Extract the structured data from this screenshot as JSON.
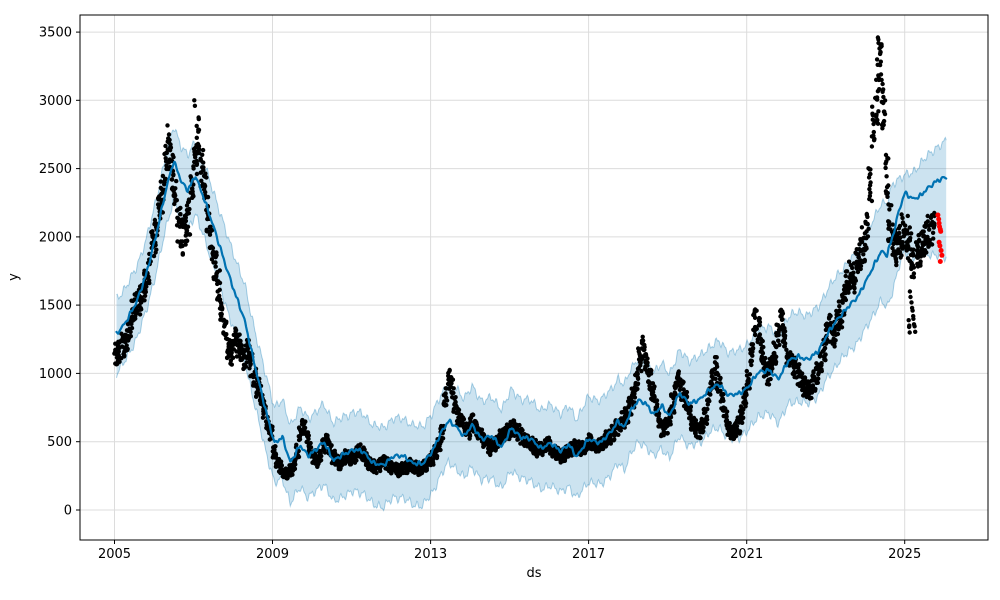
{
  "chart_data": {
    "type": "scatter",
    "title": "",
    "xlabel": "ds",
    "ylabel": "y",
    "grid": true,
    "legend": "none",
    "xlim": [
      2004.127,
      2027.107
    ],
    "ylim": [
      -220,
      3625
    ],
    "x_ticks": [
      2005,
      2009,
      2013,
      2017,
      2021,
      2025
    ],
    "y_ticks": [
      0,
      500,
      1000,
      1500,
      2000,
      2500,
      3000,
      3500
    ],
    "colors": {
      "observed": "#000000",
      "anomaly": "#ff0000",
      "forecast_line": "#0072b2",
      "band_fill": "#0072b2",
      "band_fill_opacity": 0.2,
      "grid": "#dcdcdc",
      "spine": "#000000",
      "tick_text": "#000000"
    },
    "series_names": {
      "observed": "observed (black dots)",
      "forecast": "yhat forecast line",
      "band": "uncertainty interval",
      "anomaly": "recent points flagged red"
    },
    "observed_monthly": {
      "2005": [
        1150,
        1170,
        1200,
        1240,
        1330,
        1430,
        1500,
        1530,
        1570,
        1650,
        1760,
        1920
      ],
      "2006": [
        2000,
        2180,
        2320,
        2520,
        2650,
        2500,
        2280,
        2080,
        2000,
        2060,
        2160,
        2380
      ],
      "2007": [
        2620,
        2740,
        2520,
        2320,
        2150,
        1950,
        1780,
        1650,
        1450,
        1300,
        1200,
        1150
      ],
      "2008": [
        1260,
        1200,
        1150,
        1120,
        1160,
        1060,
        960,
        900,
        840,
        740,
        640,
        560
      ],
      "2009": [
        430,
        360,
        310,
        280,
        260,
        290,
        330,
        430,
        560,
        600,
        520,
        440
      ],
      "2010": [
        390,
        360,
        400,
        470,
        510,
        450,
        390,
        360,
        340,
        370,
        390,
        380
      ],
      "2011": [
        390,
        410,
        430,
        410,
        370,
        340,
        320,
        310,
        330,
        350,
        340,
        320
      ],
      "2012": [
        310,
        300,
        290,
        300,
        310,
        330,
        320,
        310,
        300,
        310,
        330,
        370
      ],
      "2013": [
        380,
        420,
        480,
        560,
        820,
        950,
        900,
        780,
        680,
        640,
        610,
        580
      ],
      "2014": [
        640,
        600,
        570,
        540,
        500,
        470,
        450,
        480,
        510,
        530,
        550,
        570
      ],
      "2015": [
        590,
        600,
        570,
        540,
        520,
        500,
        480,
        460,
        440,
        450,
        470,
        480
      ],
      "2016": [
        460,
        430,
        410,
        390,
        400,
        420,
        440,
        460,
        450,
        430,
        450,
        470
      ],
      "2017": [
        500,
        490,
        470,
        480,
        500,
        520,
        540,
        560,
        600,
        630,
        660,
        700
      ],
      "2018": [
        760,
        820,
        950,
        1100,
        1180,
        1080,
        950,
        860,
        750,
        660,
        600,
        620
      ],
      "2019": [
        680,
        780,
        900,
        950,
        880,
        800,
        720,
        650,
        600,
        580,
        620,
        680
      ],
      "2020": [
        820,
        950,
        1040,
        920,
        780,
        680,
        600,
        570,
        580,
        620,
        700,
        820
      ],
      "2021": [
        950,
        1150,
        1380,
        1320,
        1180,
        1060,
        1000,
        1040,
        1140,
        1290,
        1370,
        1270
      ],
      "2022": [
        1150,
        1090,
        1040,
        990,
        950,
        900,
        870,
        890,
        940,
        1000,
        1090,
        1180
      ],
      "2023": [
        1270,
        1330,
        1290,
        1360,
        1440,
        1540,
        1640,
        1740,
        1700,
        1790,
        1880,
        1940
      ],
      "2024": [
        2050,
        2400,
        2800,
        3000,
        3250,
        2900,
        2450,
        2100,
        1980,
        1920,
        1970,
        2030
      ],
      "2025": [
        2020,
        1950,
        1800,
        1850,
        1900,
        1950,
        1980,
        2020,
        2040
      ]
    },
    "observed_outliers": [
      [
        2007.02,
        3000
      ],
      [
        2006.38,
        2750
      ],
      [
        2024.32,
        3460
      ],
      [
        2024.36,
        3380
      ],
      [
        2024.3,
        3300
      ],
      [
        2024.4,
        3190
      ],
      [
        2024.44,
        3120
      ],
      [
        2025.1,
        1390
      ],
      [
        2025.11,
        1340
      ],
      [
        2025.13,
        1600
      ],
      [
        2025.17,
        1520
      ],
      [
        2025.2,
        1460
      ],
      [
        2025.22,
        1400
      ],
      [
        2025.25,
        1345
      ]
    ],
    "anomalies_red": [
      [
        2025.84,
        2160
      ],
      [
        2025.86,
        2130
      ],
      [
        2025.87,
        2100
      ],
      [
        2025.88,
        2075
      ],
      [
        2025.9,
        2055
      ],
      [
        2025.91,
        2040
      ],
      [
        2025.87,
        1960
      ],
      [
        2025.89,
        1935
      ],
      [
        2025.92,
        1900
      ],
      [
        2025.94,
        1865
      ],
      [
        2025.9,
        1820
      ]
    ],
    "forecast": [
      [
        2005.05,
        1290,
        1000,
        1545
      ],
      [
        2005.3,
        1380,
        1105,
        1635
      ],
      [
        2005.55,
        1520,
        1250,
        1775
      ],
      [
        2005.8,
        1720,
        1450,
        1975
      ],
      [
        2006.05,
        2010,
        1735,
        2265
      ],
      [
        2006.3,
        2340,
        2060,
        2595
      ],
      [
        2006.5,
        2560,
        2280,
        2815
      ],
      [
        2006.7,
        2400,
        2120,
        2655
      ],
      [
        2006.85,
        2340,
        2060,
        2595
      ],
      [
        2007.05,
        2450,
        2165,
        2705
      ],
      [
        2007.3,
        2250,
        1965,
        2505
      ],
      [
        2007.55,
        2040,
        1755,
        2295
      ],
      [
        2007.8,
        1800,
        1510,
        2055
      ],
      [
        2008.05,
        1590,
        1300,
        1850
      ],
      [
        2008.3,
        1380,
        1085,
        1640
      ],
      [
        2008.55,
        1060,
        765,
        1320
      ],
      [
        2008.8,
        760,
        465,
        1020
      ],
      [
        2009.05,
        490,
        195,
        755
      ],
      [
        2009.25,
        530,
        230,
        800
      ],
      [
        2009.45,
        350,
        50,
        625
      ],
      [
        2009.7,
        470,
        165,
        745
      ],
      [
        2009.9,
        400,
        95,
        675
      ],
      [
        2010.1,
        440,
        135,
        715
      ],
      [
        2010.3,
        500,
        195,
        775
      ],
      [
        2010.55,
        360,
        55,
        635
      ],
      [
        2010.8,
        410,
        105,
        685
      ],
      [
        2011.05,
        440,
        135,
        715
      ],
      [
        2011.3,
        430,
        125,
        705
      ],
      [
        2011.55,
        340,
        35,
        615
      ],
      [
        2011.8,
        330,
        25,
        605
      ],
      [
        2012.05,
        390,
        85,
        665
      ],
      [
        2012.3,
        400,
        95,
        675
      ],
      [
        2012.55,
        340,
        35,
        615
      ],
      [
        2012.8,
        340,
        35,
        615
      ],
      [
        2013.05,
        430,
        125,
        705
      ],
      [
        2013.25,
        560,
        255,
        840
      ],
      [
        2013.45,
        650,
        345,
        930
      ],
      [
        2013.65,
        610,
        305,
        890
      ],
      [
        2013.85,
        540,
        235,
        820
      ],
      [
        2014.05,
        620,
        315,
        900
      ],
      [
        2014.3,
        520,
        215,
        800
      ],
      [
        2014.55,
        540,
        235,
        820
      ],
      [
        2014.8,
        460,
        155,
        740
      ],
      [
        2015.05,
        600,
        295,
        880
      ],
      [
        2015.3,
        530,
        225,
        810
      ],
      [
        2015.55,
        520,
        215,
        800
      ],
      [
        2015.8,
        450,
        145,
        730
      ],
      [
        2016.05,
        490,
        185,
        770
      ],
      [
        2016.3,
        430,
        125,
        705
      ],
      [
        2016.5,
        480,
        175,
        760
      ],
      [
        2016.7,
        390,
        85,
        665
      ],
      [
        2017.0,
        520,
        210,
        830
      ],
      [
        2017.3,
        490,
        180,
        800
      ],
      [
        2017.55,
        570,
        260,
        880
      ],
      [
        2017.75,
        650,
        340,
        960
      ],
      [
        2017.9,
        600,
        290,
        910
      ],
      [
        2018.05,
        720,
        410,
        1030
      ],
      [
        2018.25,
        800,
        490,
        1110
      ],
      [
        2018.45,
        780,
        470,
        1090
      ],
      [
        2018.65,
        700,
        390,
        1010
      ],
      [
        2018.85,
        760,
        450,
        1070
      ],
      [
        2019.05,
        690,
        380,
        1000
      ],
      [
        2019.3,
        855,
        545,
        1165
      ],
      [
        2019.55,
        780,
        465,
        1095
      ],
      [
        2019.8,
        805,
        490,
        1120
      ],
      [
        2020.05,
        880,
        565,
        1195
      ],
      [
        2020.3,
        920,
        605,
        1235
      ],
      [
        2020.55,
        840,
        520,
        1155
      ],
      [
        2020.8,
        850,
        530,
        1165
      ],
      [
        2021.05,
        905,
        585,
        1225
      ],
      [
        2021.3,
        1010,
        690,
        1330
      ],
      [
        2021.55,
        1025,
        705,
        1345
      ],
      [
        2021.8,
        960,
        640,
        1280
      ],
      [
        2022.05,
        1090,
        770,
        1415
      ],
      [
        2022.3,
        1125,
        800,
        1450
      ],
      [
        2022.55,
        1100,
        775,
        1425
      ],
      [
        2022.8,
        1160,
        835,
        1485
      ],
      [
        2023.05,
        1290,
        965,
        1615
      ],
      [
        2023.3,
        1400,
        1075,
        1725
      ],
      [
        2023.55,
        1480,
        1150,
        1805
      ],
      [
        2023.8,
        1560,
        1225,
        1890
      ],
      [
        2024.05,
        1690,
        1345,
        2030
      ],
      [
        2024.25,
        1810,
        1455,
        2155
      ],
      [
        2024.4,
        1895,
        1530,
        2250
      ],
      [
        2024.55,
        1865,
        1480,
        2240
      ],
      [
        2024.7,
        2010,
        1610,
        2390
      ],
      [
        2024.85,
        2190,
        1780,
        2430
      ],
      [
        2025.0,
        2320,
        1890,
        2450
      ],
      [
        2025.2,
        2280,
        1855,
        2470
      ],
      [
        2025.4,
        2300,
        1865,
        2540
      ],
      [
        2025.6,
        2360,
        1875,
        2600
      ],
      [
        2025.8,
        2410,
        1865,
        2655
      ],
      [
        2026.05,
        2435,
        1850,
        2700
      ]
    ]
  }
}
